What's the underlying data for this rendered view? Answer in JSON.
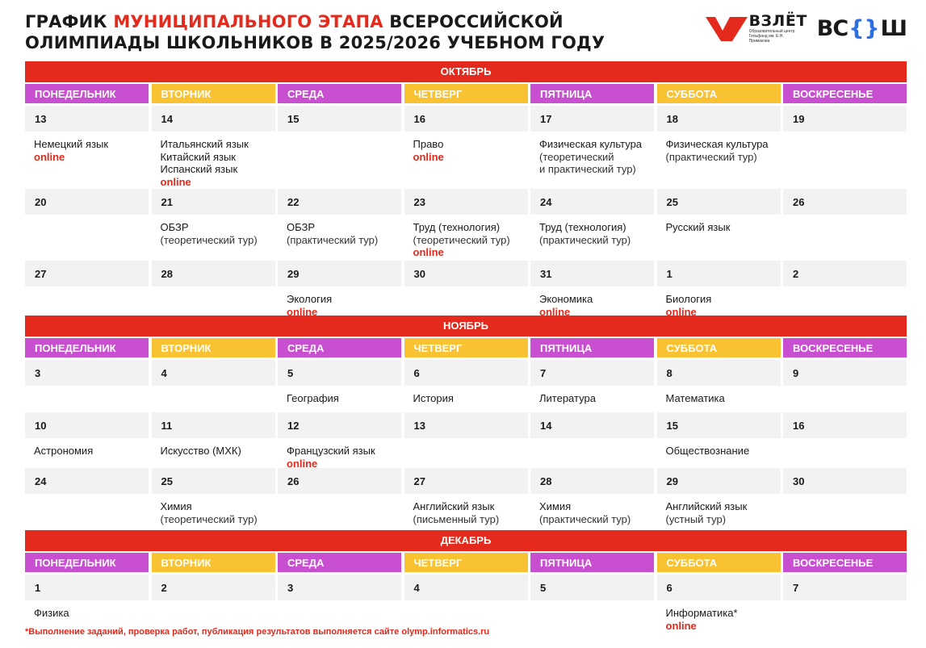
{
  "header": {
    "title_part1": "ГРАФИК ",
    "title_accent": "МУНИЦИПАЛЬНОГО ЭТАПА",
    "title_part2": " ВСЕРОССИЙСКОЙ",
    "title_line2": "ОЛИМПИАДЫ ШКОЛЬНИКОВ В 2025/2026 УЧЕБНОМ ГОДУ",
    "logo_vzlet": "ВЗЛЁТ",
    "logo_vzlet_sub": "Образовательный центр Гельфанд им. Е.Н. Примакова",
    "logo_vsosh": {
      "left": "ВС",
      "mid": "{}",
      "right": "Ш"
    },
    "colors": {
      "accent": "#e32a1c",
      "magenta": "#c84fd0",
      "yellow": "#f9c232",
      "gray": "#f2f2f2"
    }
  },
  "weekdays": [
    "ПОНЕДЕЛЬНИК",
    "ВТОРНИК",
    "СРЕДА",
    "ЧЕТВЕРГ",
    "ПЯТНИЦА",
    "СУББОТА",
    "ВОСКРЕСЕНЬЕ"
  ],
  "months": [
    {
      "name": "ОКТЯБРЬ",
      "weeks": [
        {
          "days": [
            {
              "num": "13",
              "events": [
                {
                  "t": "Немецкий язык"
                },
                {
                  "t": "online",
                  "k": "on"
                }
              ]
            },
            {
              "num": "14",
              "events": [
                {
                  "t": "Итальянский язык"
                },
                {
                  "t": "Китайский язык"
                },
                {
                  "t": "Испанский язык"
                },
                {
                  "t": "online",
                  "k": "on"
                }
              ]
            },
            {
              "num": "15",
              "events": []
            },
            {
              "num": "16",
              "events": [
                {
                  "t": "Право"
                },
                {
                  "t": "online",
                  "k": "on"
                }
              ]
            },
            {
              "num": "17",
              "events": [
                {
                  "t": "Физическая культура"
                },
                {
                  "t": "(теоретический",
                  "k": "sub"
                },
                {
                  "t": "и практический тур)",
                  "k": "sub"
                }
              ]
            },
            {
              "num": "18",
              "events": [
                {
                  "t": "Физическая культура"
                },
                {
                  "t": "(практический тур)",
                  "k": "sub"
                }
              ]
            },
            {
              "num": "19",
              "events": []
            }
          ]
        },
        {
          "days": [
            {
              "num": "20",
              "events": []
            },
            {
              "num": "21",
              "events": [
                {
                  "t": "ОБЗР"
                },
                {
                  "t": "(теоретический тур)",
                  "k": "sub"
                }
              ]
            },
            {
              "num": "22",
              "events": [
                {
                  "t": "ОБЗР"
                },
                {
                  "t": "(практический тур)",
                  "k": "sub"
                }
              ]
            },
            {
              "num": "23",
              "events": [
                {
                  "t": "Труд (технология)"
                },
                {
                  "t": "(теоретический тур)",
                  "k": "sub"
                },
                {
                  "t": "online",
                  "k": "on"
                }
              ]
            },
            {
              "num": "24",
              "events": [
                {
                  "t": "Труд (технология)"
                },
                {
                  "t": "(практический тур)",
                  "k": "sub"
                }
              ]
            },
            {
              "num": "25",
              "events": [
                {
                  "t": "Русский язык"
                }
              ]
            },
            {
              "num": "26",
              "events": []
            }
          ]
        },
        {
          "days": [
            {
              "num": "27",
              "events": []
            },
            {
              "num": "28",
              "events": []
            },
            {
              "num": "29",
              "events": [
                {
                  "t": "Экология"
                },
                {
                  "t": "online",
                  "k": "on"
                }
              ]
            },
            {
              "num": "30",
              "events": []
            },
            {
              "num": "31",
              "events": [
                {
                  "t": "Экономика"
                },
                {
                  "t": "online",
                  "k": "on"
                }
              ]
            },
            {
              "num": "1",
              "events": [
                {
                  "t": "Биология"
                },
                {
                  "t": "online",
                  "k": "on"
                }
              ]
            },
            {
              "num": "2",
              "events": []
            }
          ]
        }
      ]
    },
    {
      "name": "НОЯБРЬ",
      "weeks": [
        {
          "days": [
            {
              "num": "3",
              "events": []
            },
            {
              "num": "4",
              "events": []
            },
            {
              "num": "5",
              "events": [
                {
                  "t": "География"
                }
              ]
            },
            {
              "num": "6",
              "events": [
                {
                  "t": "История"
                }
              ]
            },
            {
              "num": "7",
              "events": [
                {
                  "t": "Литература"
                }
              ]
            },
            {
              "num": "8",
              "events": [
                {
                  "t": "Математика"
                }
              ]
            },
            {
              "num": "9",
              "events": []
            }
          ]
        },
        {
          "days": [
            {
              "num": "10",
              "events": [
                {
                  "t": "Астрономия"
                }
              ]
            },
            {
              "num": "11",
              "events": [
                {
                  "t": "Искусство (МХК)"
                }
              ]
            },
            {
              "num": "12",
              "events": [
                {
                  "t": "Французский язык"
                },
                {
                  "t": "online",
                  "k": "on"
                }
              ]
            },
            {
              "num": "13",
              "events": []
            },
            {
              "num": "14",
              "events": []
            },
            {
              "num": "15",
              "events": [
                {
                  "t": "Обществознание"
                }
              ]
            },
            {
              "num": "16",
              "events": []
            }
          ]
        },
        {
          "days": [
            {
              "num": "24",
              "events": []
            },
            {
              "num": "25",
              "events": [
                {
                  "t": "Химия"
                },
                {
                  "t": "(теоретический тур)",
                  "k": "sub"
                }
              ]
            },
            {
              "num": "26",
              "events": []
            },
            {
              "num": "27",
              "events": [
                {
                  "t": "Английский язык"
                },
                {
                  "t": "(письменный тур)",
                  "k": "sub"
                }
              ]
            },
            {
              "num": "28",
              "events": [
                {
                  "t": "Химия"
                },
                {
                  "t": "(практический тур)",
                  "k": "sub"
                }
              ]
            },
            {
              "num": "29",
              "events": [
                {
                  "t": "Английский язык"
                },
                {
                  "t": "(устный тур)",
                  "k": "sub"
                }
              ]
            },
            {
              "num": "30",
              "events": []
            }
          ]
        }
      ]
    },
    {
      "name": "ДЕКАБРЬ",
      "weeks": [
        {
          "days": [
            {
              "num": "1",
              "events": [
                {
                  "t": "Физика"
                }
              ]
            },
            {
              "num": "2",
              "events": []
            },
            {
              "num": "3",
              "events": []
            },
            {
              "num": "4",
              "events": []
            },
            {
              "num": "5",
              "events": []
            },
            {
              "num": "6",
              "events": [
                {
                  "t": "Информатика*"
                },
                {
                  "t": "online",
                  "k": "on"
                }
              ]
            },
            {
              "num": "7",
              "events": []
            }
          ]
        }
      ]
    }
  ],
  "footnote": "*Выполнение заданий, проверка работ, публикация результатов выполняется сайте olymp.informatics.ru"
}
